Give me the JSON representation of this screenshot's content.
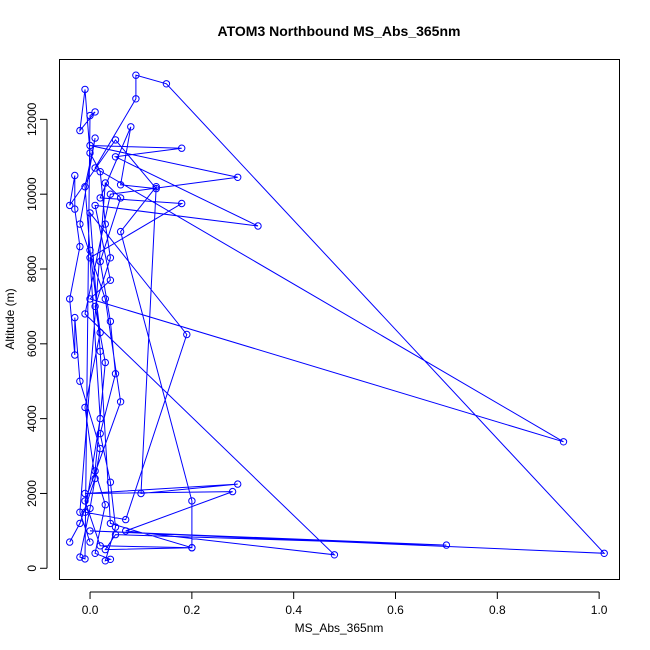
{
  "chart_data": {
    "type": "line",
    "title": "ATOM3 Northbound MS_Abs_365nm",
    "xlabel": "MS_Abs_365nm",
    "ylabel": "Altitude (m)",
    "xlim": [
      -0.06,
      1.04
    ],
    "ylim": [
      -300,
      13600
    ],
    "x_ticks": [
      0.0,
      0.2,
      0.4,
      0.6,
      0.8,
      1.0
    ],
    "x_tick_labels": [
      "0.0",
      "0.2",
      "0.4",
      "0.6",
      "0.8",
      "1.0"
    ],
    "y_ticks": [
      0,
      2000,
      4000,
      6000,
      8000,
      10000,
      12000
    ],
    "y_tick_labels": [
      "0",
      "2000",
      "4000",
      "6000",
      "8000",
      "10000",
      "12000"
    ],
    "grid": false,
    "series_color": "#0000ff",
    "marker": "open-circle",
    "series": [
      {
        "points": [
          [
            -0.04,
            700
          ],
          [
            -0.02,
            1200
          ],
          [
            0.01,
            2400
          ],
          [
            -0.01,
            4300
          ],
          [
            0.02,
            6300
          ],
          [
            0.0,
            8500
          ],
          [
            -0.01,
            10200
          ],
          [
            0.01,
            11500
          ],
          [
            -0.02,
            9200
          ],
          [
            0.03,
            7200
          ],
          [
            0.06,
            4450
          ],
          [
            -0.01,
            1800
          ],
          [
            0.02,
            600
          ],
          [
            0.2,
            550
          ],
          [
            0.03,
            500
          ],
          [
            0.05,
            900
          ],
          [
            0.7,
            620
          ],
          [
            0.0,
            1000
          ],
          [
            1.01,
            400
          ],
          [
            0.15,
            12950
          ],
          [
            0.09,
            13180
          ],
          [
            0.09,
            12550
          ],
          [
            0.01,
            10700
          ],
          [
            0.93,
            3380
          ],
          [
            0.0,
            7200
          ],
          [
            0.04,
            7700
          ],
          [
            0.01,
            9700
          ],
          [
            0.33,
            9150
          ],
          [
            0.05,
            11000
          ],
          [
            0.18,
            11230
          ],
          [
            0.0,
            11300
          ],
          [
            0.29,
            10450
          ],
          [
            0.04,
            10000
          ],
          [
            -0.01,
            6800
          ],
          [
            0.48,
            360
          ],
          [
            0.07,
            1000
          ],
          [
            0.28,
            2050
          ],
          [
            -0.01,
            2000
          ],
          [
            0.29,
            2250
          ],
          [
            0.1,
            2000
          ],
          [
            0.13,
            10200
          ],
          [
            0.06,
            9000
          ],
          [
            0.2,
            1800
          ],
          [
            0.2,
            550
          ],
          [
            0.04,
            1200
          ],
          [
            0.02,
            5800
          ],
          [
            0.0,
            9500
          ],
          [
            0.19,
            6250
          ],
          [
            0.07,
            1300
          ],
          [
            -0.01,
            1500
          ],
          [
            0.02,
            4000
          ],
          [
            0.0,
            8300
          ],
          [
            0.18,
            9750
          ],
          [
            0.02,
            9900
          ],
          [
            0.08,
            11800
          ],
          [
            0.06,
            10250
          ],
          [
            0.13,
            10150
          ],
          [
            0.05,
            11450
          ],
          [
            -0.04,
            9700
          ],
          [
            -0.03,
            10500
          ],
          [
            -0.03,
            9600
          ],
          [
            -0.02,
            8600
          ],
          [
            -0.04,
            7200
          ],
          [
            -0.03,
            5700
          ],
          [
            -0.03,
            6700
          ],
          [
            -0.02,
            5000
          ],
          [
            0.02,
            3200
          ],
          [
            0.0,
            1600
          ],
          [
            -0.02,
            300
          ],
          [
            -0.01,
            250
          ],
          [
            0.0,
            12100
          ],
          [
            0.01,
            12200
          ],
          [
            -0.02,
            11700
          ],
          [
            -0.01,
            12800
          ],
          [
            0.0,
            11100
          ],
          [
            0.02,
            10600
          ],
          [
            0.03,
            9200
          ],
          [
            0.04,
            8300
          ],
          [
            0.01,
            7000
          ],
          [
            0.03,
            5500
          ],
          [
            0.01,
            2600
          ],
          [
            0.03,
            1700
          ],
          [
            0.01,
            400
          ],
          [
            0.04,
            240
          ],
          [
            0.03,
            200
          ],
          [
            0.05,
            1100
          ],
          [
            0.04,
            2300
          ],
          [
            0.02,
            3600
          ],
          [
            0.05,
            5200
          ],
          [
            0.04,
            6600
          ],
          [
            0.02,
            8200
          ],
          [
            0.06,
            9900
          ],
          [
            0.03,
            10300
          ],
          [
            -0.02,
            1500
          ],
          [
            0.0,
            700
          ]
        ]
      }
    ]
  }
}
